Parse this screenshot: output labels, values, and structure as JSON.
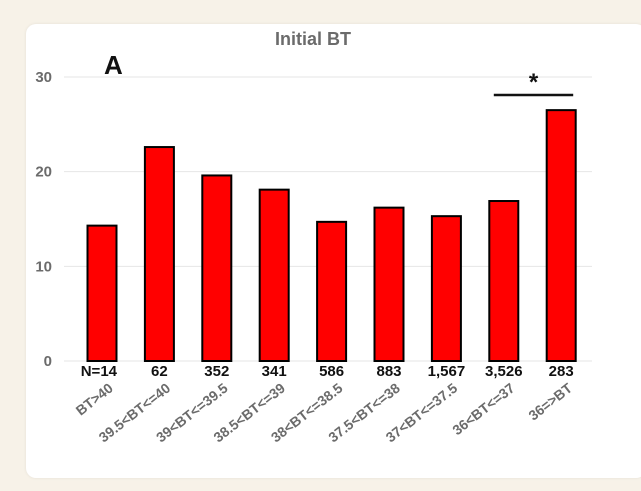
{
  "chart_data": {
    "type": "bar",
    "title": "Initial BT",
    "panel_label": "A",
    "xlabel": "",
    "ylabel": "",
    "ylim": [
      0,
      30
    ],
    "yticks": [
      "0",
      "10",
      "20",
      "30"
    ],
    "grid": true,
    "categories": [
      "BT>40",
      "39.5<BT<=40",
      "39<BT<=39.5",
      "38.5<BT<=39",
      "38<BT<=38.5",
      "37.5<BT<=38",
      "37<BT<=37.5",
      "36<BT<=37",
      "36=>BT"
    ],
    "n_prefix": "N=",
    "n_values": [
      "14",
      "62",
      "352",
      "341",
      "586",
      "883",
      "1,567",
      "3,526",
      "283"
    ],
    "values": [
      14.3,
      22.6,
      19.6,
      18.1,
      14.7,
      16.2,
      15.3,
      16.9,
      26.5
    ],
    "significance": {
      "label": "*",
      "over_category": "36=>BT"
    },
    "colors": {
      "bar": "#ff0000",
      "bar_stroke": "#000000",
      "grid": "#e6e6e6"
    }
  }
}
